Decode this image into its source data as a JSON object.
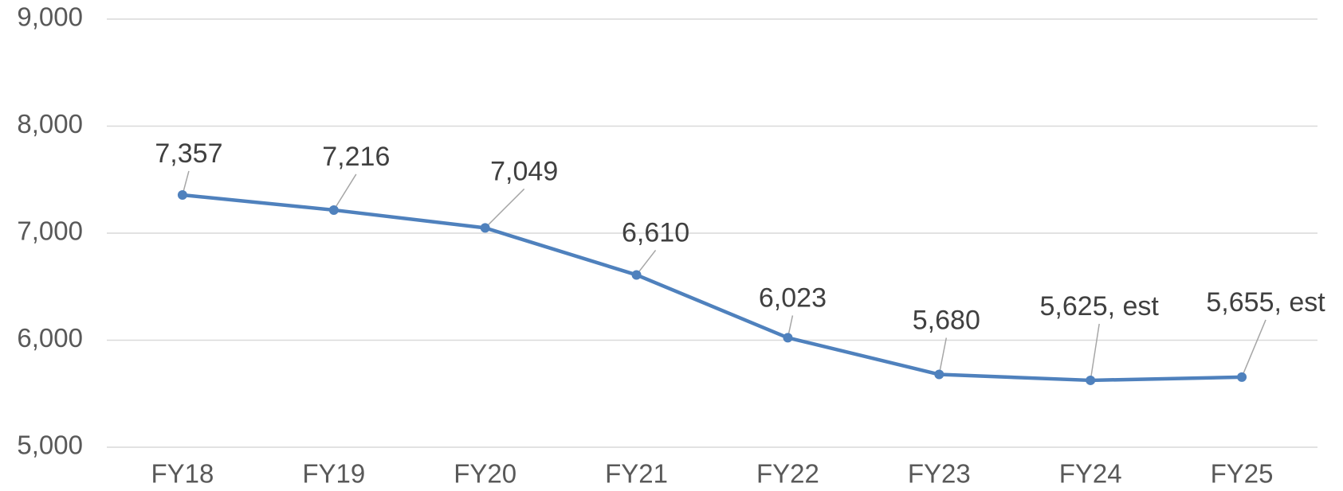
{
  "chart_data": {
    "type": "line",
    "categories": [
      "FY18",
      "FY19",
      "FY20",
      "FY21",
      "FY22",
      "FY23",
      "FY24",
      "FY25"
    ],
    "series": [
      {
        "name": null,
        "color": "#4f81bd",
        "values": [
          7357,
          7216,
          7049,
          6610,
          6023,
          5680,
          5625,
          5655
        ],
        "value_labels": [
          "7,357",
          "7,216",
          "7,049",
          "6,610",
          "6,023",
          "5,680",
          "5,625, est",
          "5,655, est"
        ]
      }
    ],
    "ylim": [
      5000,
      9000
    ],
    "yticks": [
      {
        "value": 5000,
        "label": "5,000"
      },
      {
        "value": 6000,
        "label": "6,000"
      },
      {
        "value": 7000,
        "label": "7,000"
      },
      {
        "value": 8000,
        "label": "8,000"
      },
      {
        "value": 9000,
        "label": "9,000"
      }
    ],
    "grid": true
  }
}
